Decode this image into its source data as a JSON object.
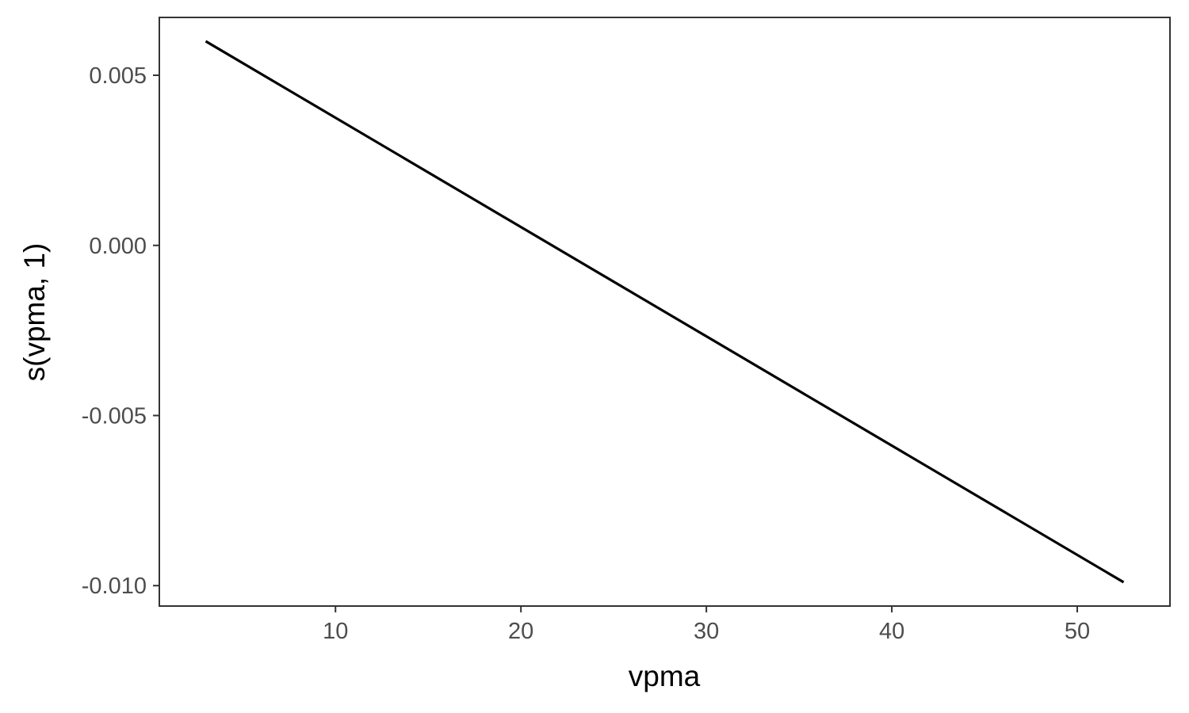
{
  "chart_data": {
    "type": "line",
    "title": "",
    "xlabel": "vpma",
    "ylabel": "s(vpma, 1)",
    "xlim": [
      0.5,
      55
    ],
    "ylim": [
      -0.0106,
      0.0067
    ],
    "x_ticks": [
      10,
      20,
      30,
      40,
      50
    ],
    "x_tick_labels": [
      "10",
      "20",
      "30",
      "40",
      "50"
    ],
    "y_ticks": [
      0.005,
      0.0,
      -0.005,
      -0.01
    ],
    "y_tick_labels": [
      "0.005",
      "0.000",
      "-0.005",
      "-0.010"
    ],
    "grid": false,
    "series": [
      {
        "name": "s(vpma, 1)",
        "color": "#000000",
        "x": [
          3,
          52.5
        ],
        "y": [
          0.006,
          -0.0099
        ]
      }
    ]
  }
}
